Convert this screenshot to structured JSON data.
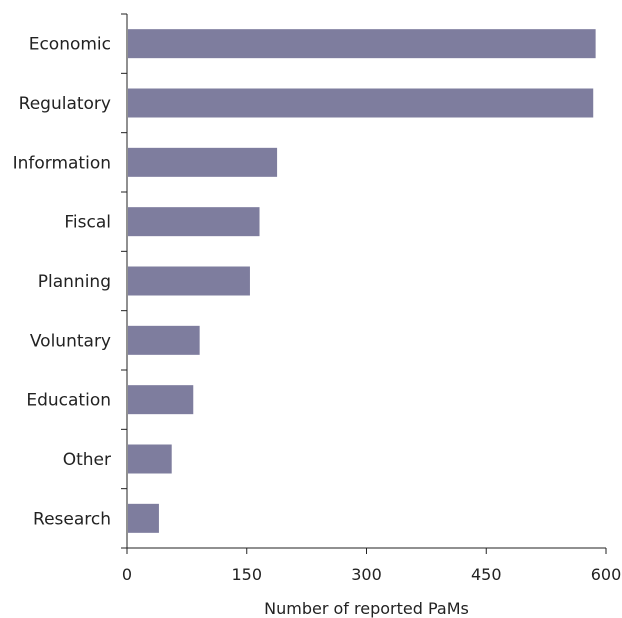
{
  "chart_data": {
    "type": "bar",
    "orientation": "horizontal",
    "categories": [
      "Economic",
      "Regulatory",
      "Information",
      "Fiscal",
      "Planning",
      "Voluntary",
      "Education",
      "Other",
      "Research"
    ],
    "values": [
      587,
      584,
      188,
      166,
      154,
      91,
      83,
      56,
      40
    ],
    "xlabel": "Number of reported PaMs",
    "ylabel": "",
    "xlim": [
      0,
      600
    ],
    "xticks": [
      0,
      150,
      300,
      450,
      600
    ],
    "grid": false,
    "bar_color": "#7e7d9e"
  }
}
